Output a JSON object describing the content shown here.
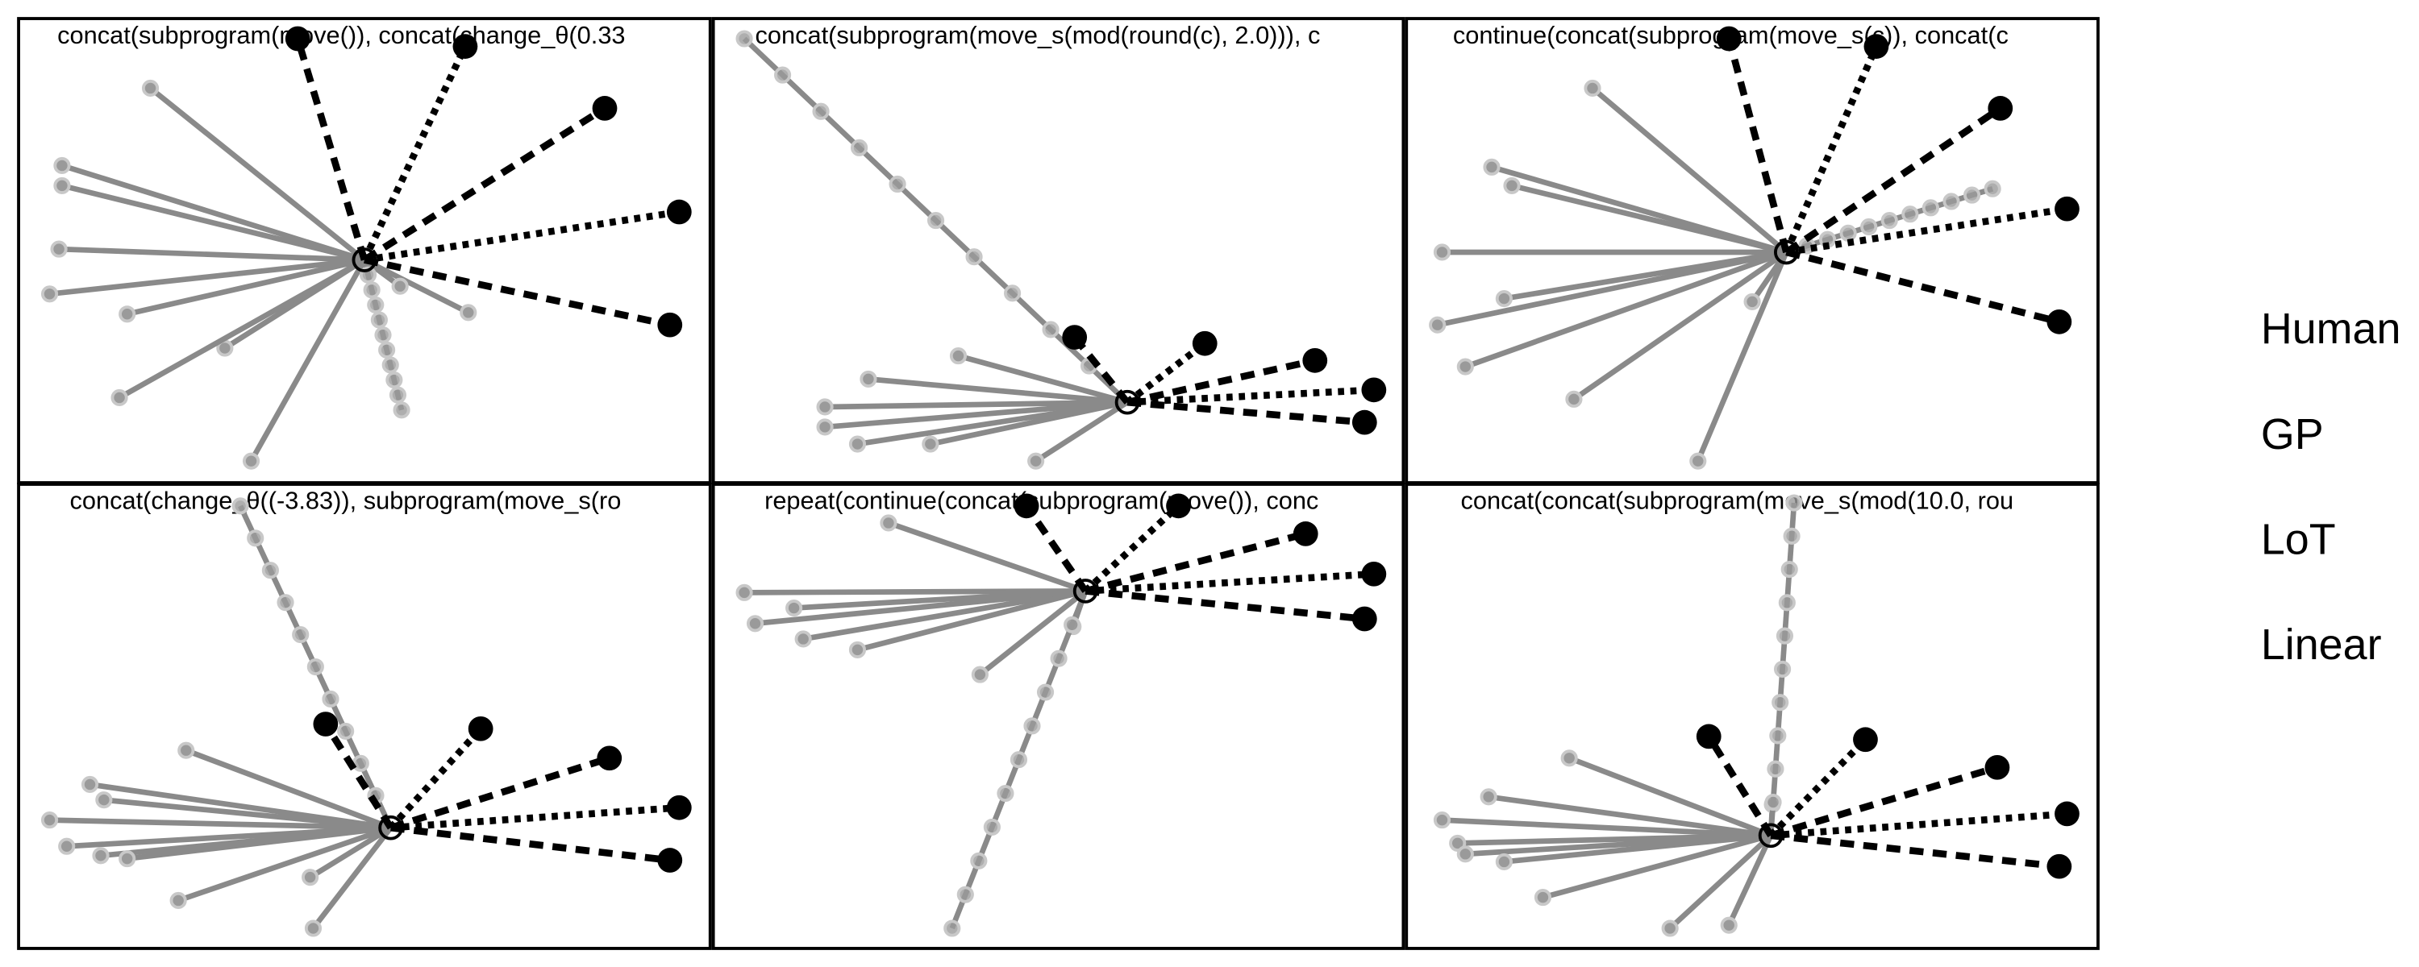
{
  "panels": [
    {
      "title": "concat(subprogram(move()), concat(change_θ(0.33"
    },
    {
      "title": "concat(subprogram(move_s(mod(round(c), 2.0))), c"
    },
    {
      "title": "continue(concat(subprogram(move_s(c)), concat(c"
    },
    {
      "title": "concat(change_θ((-3.83)), subprogram(move_s(ro"
    },
    {
      "title": "repeat(continue(concat(subprogram(move()), conc"
    },
    {
      "title": "concat(concat(subprogram(move_s(mod(10.0, rou"
    }
  ],
  "legend": [
    "Human",
    "GP",
    "LoT",
    "Linear"
  ]
}
